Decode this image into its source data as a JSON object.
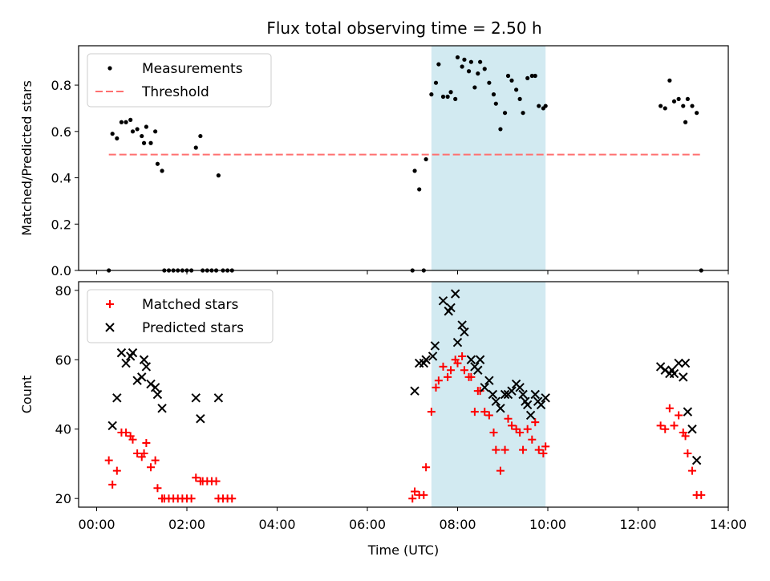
{
  "chart_data": [
    {
      "type": "scatter",
      "title": "Flux total observing time = 2.50 h",
      "xlabel": "",
      "ylabel": "Matched/Predicted stars",
      "xlim": [
        -0.4,
        14.0
      ],
      "ylim": [
        0.0,
        0.97
      ],
      "yticks": [
        0.0,
        0.2,
        0.4,
        0.6,
        0.8
      ],
      "ytick_labels": [
        "0.0",
        "0.2",
        "0.4",
        "0.6",
        "0.8"
      ],
      "grid": false,
      "legend_position": "top-left",
      "highlight_span": {
        "x0": 7.42,
        "x1": 9.95,
        "color": "#add8e6"
      },
      "series": [
        {
          "name": "Measurements",
          "color": "#000000",
          "marker": "dot",
          "points": [
            [
              0.27,
              0.0
            ],
            [
              0.35,
              0.59
            ],
            [
              0.45,
              0.57
            ],
            [
              0.55,
              0.64
            ],
            [
              0.65,
              0.64
            ],
            [
              0.75,
              0.65
            ],
            [
              0.8,
              0.6
            ],
            [
              0.9,
              0.61
            ],
            [
              1.0,
              0.58
            ],
            [
              1.05,
              0.55
            ],
            [
              1.1,
              0.62
            ],
            [
              1.2,
              0.55
            ],
            [
              1.3,
              0.6
            ],
            [
              1.35,
              0.46
            ],
            [
              1.45,
              0.43
            ],
            [
              1.5,
              0.0
            ],
            [
              1.6,
              0.0
            ],
            [
              1.7,
              0.0
            ],
            [
              1.8,
              0.0
            ],
            [
              1.9,
              0.0
            ],
            [
              2.0,
              0.0
            ],
            [
              2.1,
              0.0
            ],
            [
              2.2,
              0.53
            ],
            [
              2.3,
              0.58
            ],
            [
              2.35,
              0.0
            ],
            [
              2.45,
              0.0
            ],
            [
              2.55,
              0.0
            ],
            [
              2.65,
              0.0
            ],
            [
              2.7,
              0.41
            ],
            [
              2.8,
              0.0
            ],
            [
              2.9,
              0.0
            ],
            [
              3.0,
              0.0
            ],
            [
              7.0,
              0.0
            ],
            [
              7.05,
              0.43
            ],
            [
              7.15,
              0.35
            ],
            [
              7.25,
              0.0
            ],
            [
              7.3,
              0.48
            ],
            [
              7.42,
              0.76
            ],
            [
              7.52,
              0.81
            ],
            [
              7.58,
              0.89
            ],
            [
              7.68,
              0.75
            ],
            [
              7.78,
              0.75
            ],
            [
              7.85,
              0.77
            ],
            [
              7.95,
              0.74
            ],
            [
              8.0,
              0.92
            ],
            [
              8.1,
              0.88
            ],
            [
              8.15,
              0.91
            ],
            [
              8.25,
              0.86
            ],
            [
              8.3,
              0.9
            ],
            [
              8.38,
              0.79
            ],
            [
              8.45,
              0.85
            ],
            [
              8.5,
              0.9
            ],
            [
              8.6,
              0.87
            ],
            [
              8.7,
              0.81
            ],
            [
              8.8,
              0.76
            ],
            [
              8.85,
              0.72
            ],
            [
              8.95,
              0.61
            ],
            [
              9.05,
              0.68
            ],
            [
              9.12,
              0.84
            ],
            [
              9.2,
              0.82
            ],
            [
              9.3,
              0.78
            ],
            [
              9.38,
              0.74
            ],
            [
              9.45,
              0.68
            ],
            [
              9.55,
              0.83
            ],
            [
              9.65,
              0.84
            ],
            [
              9.72,
              0.84
            ],
            [
              9.8,
              0.71
            ],
            [
              9.9,
              0.7
            ],
            [
              9.95,
              0.71
            ],
            [
              12.5,
              0.71
            ],
            [
              12.6,
              0.7
            ],
            [
              12.7,
              0.82
            ],
            [
              12.8,
              0.73
            ],
            [
              12.9,
              0.74
            ],
            [
              13.0,
              0.71
            ],
            [
              13.05,
              0.64
            ],
            [
              13.1,
              0.74
            ],
            [
              13.2,
              0.71
            ],
            [
              13.3,
              0.68
            ],
            [
              13.4,
              0.0
            ]
          ]
        },
        {
          "name": "Threshold",
          "color": "#ff7070",
          "style": "dashed",
          "line": [
            [
              0.27,
              0.5
            ],
            [
              13.4,
              0.5
            ]
          ]
        }
      ]
    },
    {
      "type": "scatter",
      "title": "",
      "xlabel": "Time (UTC)",
      "ylabel": "Count",
      "xlim": [
        -0.4,
        14.0
      ],
      "ylim": [
        17.5,
        82.5
      ],
      "yticks": [
        20,
        40,
        60,
        80
      ],
      "ytick_labels": [
        "20",
        "40",
        "60",
        "80"
      ],
      "xticks": [
        0,
        2,
        4,
        6,
        8,
        10,
        12,
        14
      ],
      "xtick_labels": [
        "00:00",
        "02:00",
        "04:00",
        "06:00",
        "08:00",
        "10:00",
        "12:00",
        "14:00"
      ],
      "grid": false,
      "legend_position": "top-left",
      "highlight_span": {
        "x0": 7.42,
        "x1": 9.95,
        "color": "#add8e6"
      },
      "series": [
        {
          "name": "Matched stars",
          "color": "#ff0000",
          "marker": "plus",
          "points": [
            [
              0.27,
              31
            ],
            [
              0.35,
              24
            ],
            [
              0.45,
              28
            ],
            [
              0.55,
              39
            ],
            [
              0.65,
              39
            ],
            [
              0.75,
              38
            ],
            [
              0.8,
              37
            ],
            [
              0.9,
              33
            ],
            [
              1.0,
              32
            ],
            [
              1.05,
              33
            ],
            [
              1.1,
              36
            ],
            [
              1.2,
              29
            ],
            [
              1.3,
              31
            ],
            [
              1.35,
              23
            ],
            [
              1.45,
              20
            ],
            [
              1.5,
              20
            ],
            [
              1.6,
              20
            ],
            [
              1.7,
              20
            ],
            [
              1.8,
              20
            ],
            [
              1.9,
              20
            ],
            [
              2.0,
              20
            ],
            [
              2.1,
              20
            ],
            [
              2.2,
              26
            ],
            [
              2.3,
              25
            ],
            [
              2.35,
              25
            ],
            [
              2.45,
              25
            ],
            [
              2.55,
              25
            ],
            [
              2.65,
              25
            ],
            [
              2.7,
              20
            ],
            [
              2.8,
              20
            ],
            [
              2.9,
              20
            ],
            [
              3.0,
              20
            ],
            [
              7.0,
              20
            ],
            [
              7.05,
              22
            ],
            [
              7.15,
              21
            ],
            [
              7.25,
              21
            ],
            [
              7.3,
              29
            ],
            [
              7.42,
              45
            ],
            [
              7.52,
              52
            ],
            [
              7.58,
              54
            ],
            [
              7.68,
              58
            ],
            [
              7.78,
              55
            ],
            [
              7.85,
              57
            ],
            [
              7.95,
              60
            ],
            [
              8.0,
              59
            ],
            [
              8.1,
              61
            ],
            [
              8.15,
              57
            ],
            [
              8.25,
              55
            ],
            [
              8.3,
              55
            ],
            [
              8.38,
              45
            ],
            [
              8.45,
              51
            ],
            [
              8.5,
              51
            ],
            [
              8.6,
              45
            ],
            [
              8.7,
              44
            ],
            [
              8.8,
              39
            ],
            [
              8.85,
              34
            ],
            [
              8.95,
              28
            ],
            [
              9.05,
              34
            ],
            [
              9.12,
              43
            ],
            [
              9.2,
              41
            ],
            [
              9.3,
              40
            ],
            [
              9.38,
              39
            ],
            [
              9.45,
              34
            ],
            [
              9.55,
              40
            ],
            [
              9.65,
              37
            ],
            [
              9.72,
              42
            ],
            [
              9.8,
              34
            ],
            [
              9.9,
              33
            ],
            [
              9.95,
              35
            ],
            [
              12.5,
              41
            ],
            [
              12.6,
              40
            ],
            [
              12.7,
              46
            ],
            [
              12.8,
              41
            ],
            [
              12.9,
              44
            ],
            [
              13.0,
              39
            ],
            [
              13.05,
              38
            ],
            [
              13.1,
              33
            ],
            [
              13.2,
              28
            ],
            [
              13.3,
              21
            ],
            [
              13.4,
              21
            ]
          ]
        },
        {
          "name": "Predicted stars",
          "color": "#000000",
          "marker": "x",
          "points": [
            [
              0.35,
              41
            ],
            [
              0.45,
              49
            ],
            [
              0.55,
              62
            ],
            [
              0.65,
              59
            ],
            [
              0.75,
              61
            ],
            [
              0.8,
              62
            ],
            [
              0.9,
              54
            ],
            [
              1.0,
              55
            ],
            [
              1.05,
              60
            ],
            [
              1.1,
              58
            ],
            [
              1.2,
              53
            ],
            [
              1.3,
              52
            ],
            [
              1.35,
              50
            ],
            [
              1.45,
              46
            ],
            [
              2.2,
              49
            ],
            [
              2.3,
              43
            ],
            [
              2.7,
              49
            ],
            [
              7.05,
              51
            ],
            [
              7.15,
              59
            ],
            [
              7.25,
              59
            ],
            [
              7.3,
              60
            ],
            [
              7.45,
              61
            ],
            [
              7.5,
              64
            ],
            [
              7.68,
              77
            ],
            [
              7.8,
              74
            ],
            [
              7.85,
              75
            ],
            [
              7.95,
              79
            ],
            [
              8.0,
              65
            ],
            [
              8.1,
              70
            ],
            [
              8.15,
              68
            ],
            [
              8.3,
              60
            ],
            [
              8.38,
              58
            ],
            [
              8.45,
              57
            ],
            [
              8.5,
              60
            ],
            [
              8.6,
              52
            ],
            [
              8.7,
              54
            ],
            [
              8.78,
              50
            ],
            [
              8.85,
              48
            ],
            [
              8.95,
              46
            ],
            [
              9.05,
              50
            ],
            [
              9.12,
              50
            ],
            [
              9.2,
              51
            ],
            [
              9.3,
              53
            ],
            [
              9.38,
              52
            ],
            [
              9.45,
              50
            ],
            [
              9.5,
              48
            ],
            [
              9.55,
              47
            ],
            [
              9.62,
              44
            ],
            [
              9.72,
              50
            ],
            [
              9.78,
              48
            ],
            [
              9.85,
              47
            ],
            [
              9.95,
              49
            ],
            [
              12.5,
              58
            ],
            [
              12.6,
              57
            ],
            [
              12.7,
              56
            ],
            [
              12.75,
              57
            ],
            [
              12.8,
              56
            ],
            [
              12.9,
              59
            ],
            [
              13.0,
              55
            ],
            [
              13.05,
              59
            ],
            [
              13.1,
              45
            ],
            [
              13.2,
              40
            ],
            [
              13.3,
              31
            ]
          ]
        }
      ]
    }
  ]
}
